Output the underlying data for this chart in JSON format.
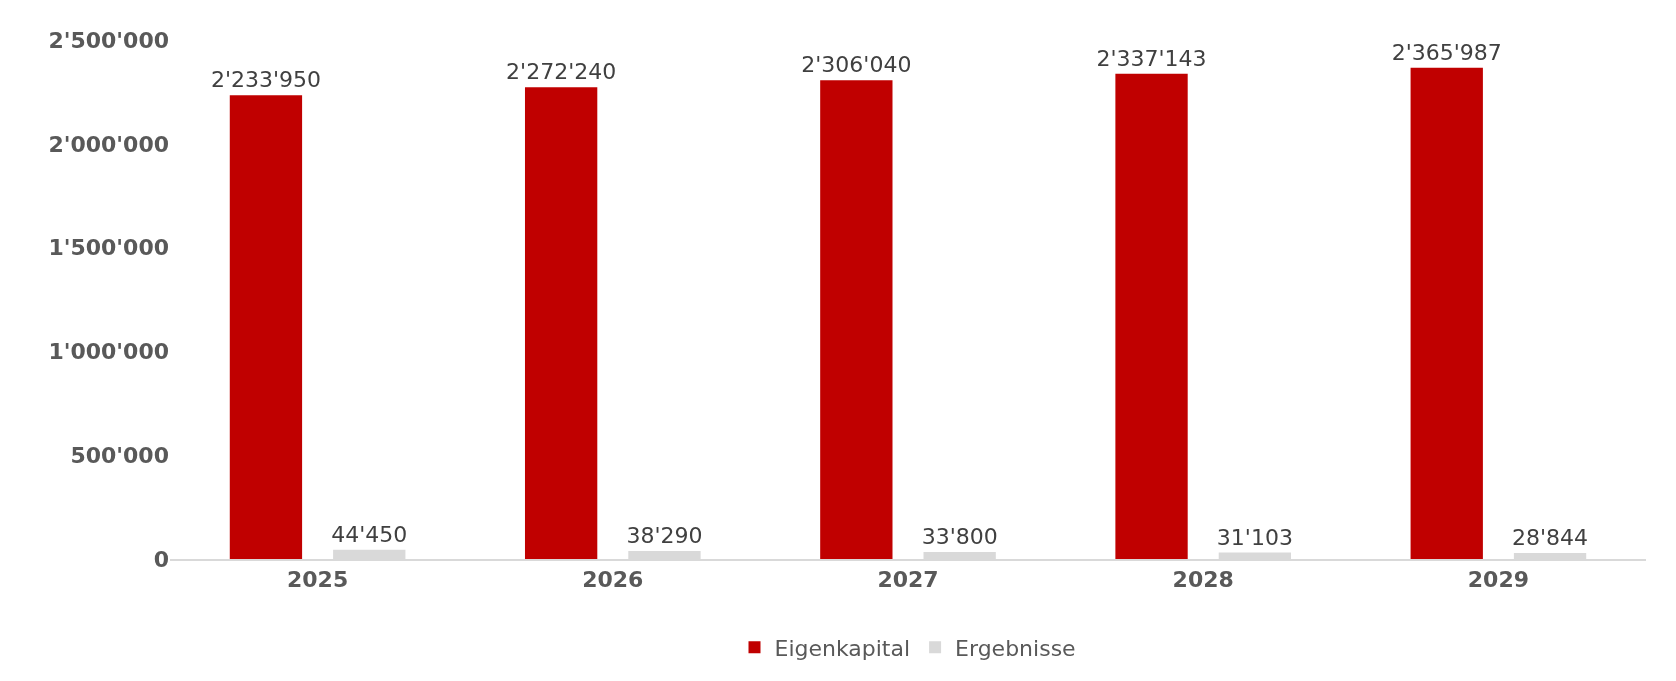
{
  "chart_data": {
    "type": "bar",
    "categories": [
      "2025",
      "2026",
      "2027",
      "2028",
      "2029"
    ],
    "series": [
      {
        "name": "Eigenkapital",
        "color": "#c00000",
        "values": [
          2233950,
          2272240,
          2306040,
          2337143,
          2365987
        ],
        "value_labels": [
          "2'233'950",
          "2'272'240",
          "2'306'040",
          "2'337'143",
          "2'365'987"
        ]
      },
      {
        "name": "Ergebnisse",
        "color": "#d9d9d9",
        "values": [
          44450,
          38290,
          33800,
          31103,
          28844
        ],
        "value_labels": [
          "44'450",
          "38'290",
          "33'800",
          "31'103",
          "28'844"
        ]
      }
    ],
    "ylim": [
      0,
      2500000
    ],
    "yticks": [
      0,
      {
        "value": 500000,
        "label": "500'000"
      },
      {
        "value": 1000000,
        "label": "1'000'000"
      },
      {
        "value": 1500000,
        "label": "1'500'000"
      },
      {
        "value": 2000000,
        "label": "2'000'000"
      },
      {
        "value": 2500000,
        "label": "2'500'000"
      }
    ],
    "grid": false,
    "legend": "bottom"
  }
}
